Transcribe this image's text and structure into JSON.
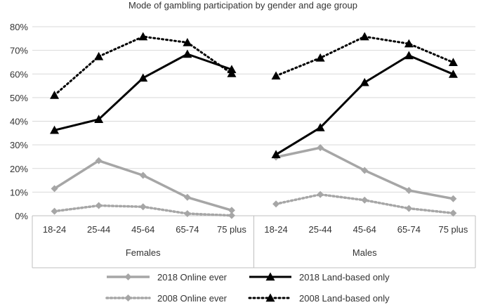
{
  "chart_data": {
    "type": "line",
    "title": "Mode of gambling participation by gender and age group",
    "ylim": [
      0,
      80
    ],
    "y_ticks": [
      0,
      10,
      20,
      30,
      40,
      50,
      60,
      70,
      80
    ],
    "y_tick_labels": [
      "0%",
      "10%",
      "20%",
      "30%",
      "40%",
      "50%",
      "60%",
      "70%",
      "80%"
    ],
    "grid": true,
    "legend_position": "bottom",
    "groups": [
      {
        "label": "Females",
        "categories": [
          "18-24",
          "25-44",
          "45-64",
          "65-74",
          "75 plus"
        ]
      },
      {
        "label": "Males",
        "categories": [
          "18-24",
          "25-44",
          "45-64",
          "65-74",
          "75 plus"
        ]
      }
    ],
    "series": [
      {
        "name": "2018 Online ever",
        "color": "#a6a6a6",
        "line": "solid",
        "marker": "diamond",
        "values": [
          [
            11.5,
            23.3,
            17.1,
            7.8,
            2.3
          ],
          [
            24.8,
            28.8,
            19.2,
            10.7,
            7.2
          ]
        ]
      },
      {
        "name": "2018 Land-based only",
        "color": "#000000",
        "line": "solid",
        "marker": "triangle",
        "values": [
          [
            36.2,
            40.8,
            58.3,
            68.4,
            61.9
          ],
          [
            25.9,
            37.3,
            56.4,
            67.8,
            59.9
          ]
        ]
      },
      {
        "name": "2008 Online ever",
        "color": "#a6a6a6",
        "line": "dotted",
        "marker": "diamond",
        "values": [
          [
            1.9,
            4.3,
            3.8,
            0.9,
            0.1
          ],
          [
            5.0,
            9.0,
            6.6,
            3.1,
            1.1
          ]
        ]
      },
      {
        "name": "2008 Land-based only",
        "color": "#000000",
        "line": "dotted",
        "marker": "triangle",
        "values": [
          [
            51.0,
            67.4,
            75.8,
            73.3,
            60.2
          ],
          [
            59.2,
            66.8,
            75.8,
            72.8,
            64.9
          ]
        ]
      }
    ]
  }
}
